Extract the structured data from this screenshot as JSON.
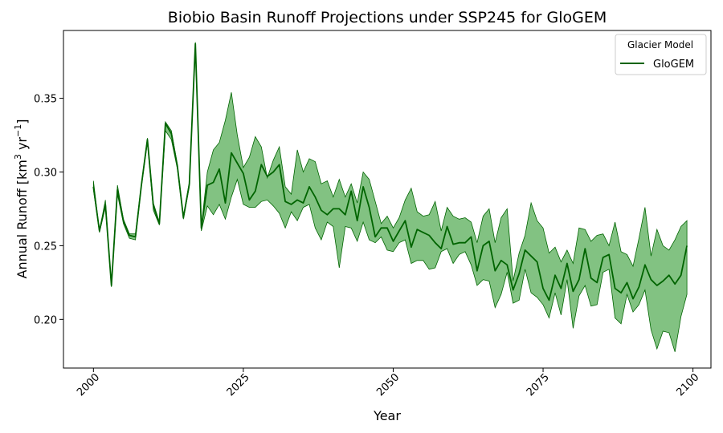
{
  "chart_data": {
    "type": "line",
    "title": "Biobio Basin Runoff Projections under SSP245 for GloGEM",
    "xlabel": "Year",
    "ylabel_main": "Annual Runoff [km",
    "ylabel_sup1": "3",
    "ylabel_mid": " yr",
    "ylabel_sup2": "−1",
    "ylabel_end": "]",
    "xlim": [
      1995,
      2103
    ],
    "ylim": [
      0.167,
      0.396
    ],
    "xticks": [
      2000,
      2025,
      2050,
      2075,
      2100
    ],
    "yticks": [
      0.2,
      0.25,
      0.3,
      0.35
    ],
    "ytick_labels": [
      "0.20",
      "0.25",
      "0.30",
      "0.35"
    ],
    "legend": {
      "title": "Glacier Model",
      "placement": "top-right"
    },
    "colors": {
      "line": "#006400",
      "band": "#2e9a2e",
      "band_opacity": 0.6
    },
    "series": [
      {
        "name": "GloGEM",
        "x": [
          2000,
          2001,
          2002,
          2003,
          2004,
          2005,
          2006,
          2007,
          2008,
          2009,
          2010,
          2011,
          2012,
          2013,
          2014,
          2015,
          2016,
          2017,
          2018,
          2019,
          2020,
          2021,
          2022,
          2023,
          2024,
          2025,
          2026,
          2027,
          2028,
          2029,
          2030,
          2031,
          2032,
          2033,
          2034,
          2035,
          2036,
          2037,
          2038,
          2039,
          2040,
          2041,
          2042,
          2043,
          2044,
          2045,
          2046,
          2047,
          2048,
          2049,
          2050,
          2051,
          2052,
          2053,
          2054,
          2055,
          2056,
          2057,
          2058,
          2059,
          2060,
          2061,
          2062,
          2063,
          2064,
          2065,
          2066,
          2067,
          2068,
          2069,
          2070,
          2071,
          2072,
          2073,
          2074,
          2075,
          2076,
          2077,
          2078,
          2079,
          2080,
          2081,
          2082,
          2083,
          2084,
          2085,
          2086,
          2087,
          2088,
          2089,
          2090,
          2091,
          2092,
          2093,
          2094,
          2095,
          2096,
          2097,
          2098,
          2099
        ],
        "mean": [
          0.29,
          0.26,
          0.278,
          0.223,
          0.288,
          0.267,
          0.257,
          0.256,
          0.291,
          0.322,
          0.277,
          0.265,
          0.333,
          0.326,
          0.304,
          0.269,
          0.292,
          0.387,
          0.262,
          0.291,
          0.293,
          0.302,
          0.279,
          0.313,
          0.306,
          0.299,
          0.281,
          0.287,
          0.305,
          0.297,
          0.3,
          0.305,
          0.28,
          0.278,
          0.281,
          0.279,
          0.29,
          0.283,
          0.274,
          0.271,
          0.275,
          0.275,
          0.271,
          0.287,
          0.267,
          0.29,
          0.276,
          0.256,
          0.262,
          0.262,
          0.253,
          0.26,
          0.267,
          0.249,
          0.261,
          0.259,
          0.257,
          0.252,
          0.248,
          0.263,
          0.251,
          0.252,
          0.252,
          0.256,
          0.233,
          0.25,
          0.253,
          0.233,
          0.24,
          0.237,
          0.22,
          0.231,
          0.247,
          0.243,
          0.239,
          0.221,
          0.213,
          0.23,
          0.221,
          0.238,
          0.219,
          0.227,
          0.248,
          0.228,
          0.225,
          0.242,
          0.244,
          0.221,
          0.218,
          0.225,
          0.214,
          0.222,
          0.237,
          0.227,
          0.223,
          0.226,
          0.23,
          0.224,
          0.23,
          0.25
        ],
        "upper": [
          0.294,
          0.26,
          0.281,
          0.223,
          0.291,
          0.268,
          0.258,
          0.258,
          0.292,
          0.323,
          0.279,
          0.266,
          0.334,
          0.328,
          0.305,
          0.27,
          0.293,
          0.388,
          0.263,
          0.3,
          0.315,
          0.32,
          0.335,
          0.354,
          0.325,
          0.303,
          0.31,
          0.324,
          0.317,
          0.296,
          0.308,
          0.317,
          0.29,
          0.285,
          0.315,
          0.3,
          0.309,
          0.307,
          0.292,
          0.294,
          0.283,
          0.295,
          0.283,
          0.292,
          0.279,
          0.3,
          0.295,
          0.28,
          0.265,
          0.27,
          0.262,
          0.269,
          0.281,
          0.289,
          0.273,
          0.27,
          0.271,
          0.28,
          0.26,
          0.276,
          0.27,
          0.268,
          0.269,
          0.266,
          0.252,
          0.27,
          0.275,
          0.252,
          0.269,
          0.275,
          0.226,
          0.245,
          0.257,
          0.279,
          0.267,
          0.262,
          0.245,
          0.249,
          0.239,
          0.247,
          0.238,
          0.262,
          0.261,
          0.253,
          0.257,
          0.258,
          0.25,
          0.266,
          0.246,
          0.244,
          0.236,
          0.255,
          0.276,
          0.243,
          0.261,
          0.25,
          0.247,
          0.254,
          0.263,
          0.267
        ],
        "lower": [
          0.288,
          0.259,
          0.276,
          0.222,
          0.285,
          0.265,
          0.255,
          0.254,
          0.29,
          0.32,
          0.274,
          0.264,
          0.328,
          0.322,
          0.302,
          0.268,
          0.29,
          0.385,
          0.26,
          0.277,
          0.271,
          0.278,
          0.268,
          0.283,
          0.295,
          0.278,
          0.276,
          0.276,
          0.28,
          0.281,
          0.277,
          0.272,
          0.262,
          0.273,
          0.267,
          0.276,
          0.278,
          0.262,
          0.254,
          0.266,
          0.263,
          0.235,
          0.263,
          0.262,
          0.253,
          0.266,
          0.254,
          0.252,
          0.256,
          0.247,
          0.246,
          0.252,
          0.254,
          0.238,
          0.24,
          0.24,
          0.234,
          0.235,
          0.246,
          0.248,
          0.238,
          0.244,
          0.246,
          0.237,
          0.223,
          0.227,
          0.226,
          0.208,
          0.217,
          0.232,
          0.211,
          0.213,
          0.234,
          0.218,
          0.215,
          0.21,
          0.201,
          0.218,
          0.203,
          0.227,
          0.194,
          0.216,
          0.223,
          0.209,
          0.21,
          0.232,
          0.234,
          0.201,
          0.197,
          0.217,
          0.205,
          0.21,
          0.22,
          0.193,
          0.18,
          0.192,
          0.191,
          0.178,
          0.202,
          0.217
        ]
      }
    ]
  }
}
